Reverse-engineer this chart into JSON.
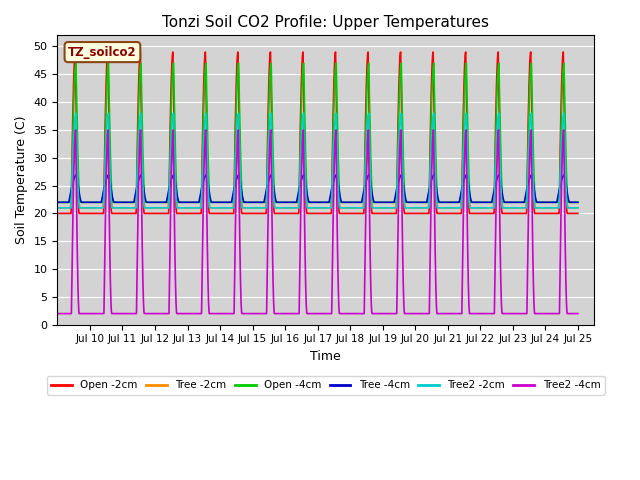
{
  "title": "Tonzi Soil CO2 Profile: Upper Temperatures",
  "xlabel": "Time",
  "ylabel": "Soil Temperature (C)",
  "ylim": [
    0,
    52
  ],
  "yticks": [
    0,
    5,
    10,
    15,
    20,
    25,
    30,
    35,
    40,
    45,
    50
  ],
  "background_color": "#d3d3d3",
  "figure_color": "#ffffff",
  "series": [
    {
      "label": "Open -2cm",
      "color": "#ff0000",
      "lw": 1.2
    },
    {
      "label": "Tree -2cm",
      "color": "#ff8c00",
      "lw": 1.2
    },
    {
      "label": "Open -4cm",
      "color": "#00cc00",
      "lw": 1.2
    },
    {
      "label": "Tree -4cm",
      "color": "#0000cc",
      "lw": 1.2
    },
    {
      "label": "Tree2 -2cm",
      "color": "#00cccc",
      "lw": 1.2
    },
    {
      "label": "Tree2 -4cm",
      "color": "#cc00cc",
      "lw": 1.2
    }
  ],
  "annotation": "TZ_soilco2",
  "annotation_color": "#8B0000",
  "annotation_bg": "#ffffe0",
  "annotation_edge": "#8B4513",
  "x_tick_days": [
    10,
    11,
    12,
    13,
    14,
    15,
    16,
    17,
    18,
    19,
    20,
    21,
    22,
    23,
    24,
    25
  ]
}
